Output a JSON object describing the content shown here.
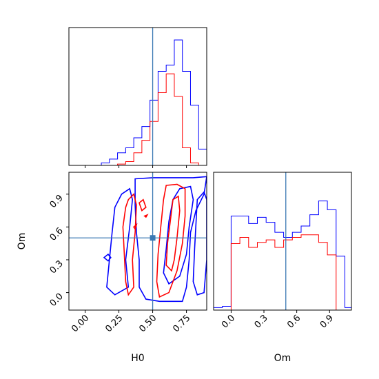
{
  "chart_data": [
    {
      "panel": "H0-marginal",
      "type": "histogram",
      "xlim": [
        -0.12,
        0.9
      ],
      "truth_x": 0.5,
      "bin_edges": [
        0.12,
        0.18,
        0.24,
        0.3,
        0.36,
        0.42,
        0.48,
        0.54,
        0.6,
        0.66,
        0.72,
        0.78,
        0.84,
        0.9
      ],
      "series": [
        {
          "color": "#0000ff",
          "counts": [
            0.02,
            0.05,
            0.1,
            0.14,
            0.22,
            0.31,
            0.52,
            0.75,
            0.8,
            1.0,
            0.75,
            0.48,
            0.13
          ]
        },
        {
          "color": "#ff0000",
          "counts": [
            0.0,
            0.0,
            0.01,
            0.03,
            0.1,
            0.2,
            0.35,
            0.58,
            0.73,
            0.55,
            0.14,
            0.02,
            0.0
          ]
        }
      ]
    },
    {
      "panel": "H0-Om-2D",
      "type": "contour",
      "xlabel": "H0",
      "ylabel": "Om",
      "xlim": [
        -0.12,
        0.9
      ],
      "ylim": [
        -0.16,
        1.1
      ],
      "xticks": [
        0.0,
        0.25,
        0.5,
        0.75
      ],
      "xtick_labels": [
        "0.00",
        "0.25",
        "0.50",
        "0.75"
      ],
      "yticks": [
        0.0,
        0.3,
        0.6,
        0.9
      ],
      "ytick_labels": [
        "0.0",
        "0.3",
        "0.6",
        "0.9"
      ],
      "truth": [
        0.5,
        0.5
      ],
      "contours": [
        {
          "color": "#0000ff",
          "points": [
            [
              0.37,
              1.04
            ],
            [
              0.5,
              1.05
            ],
            [
              0.65,
              1.05
            ],
            [
              0.8,
              1.05
            ],
            [
              0.9,
              1.06
            ],
            [
              0.88,
              0.9
            ],
            [
              0.82,
              0.75
            ],
            [
              0.78,
              0.55
            ],
            [
              0.77,
              0.3
            ],
            [
              0.75,
              0.05
            ],
            [
              0.72,
              -0.08
            ],
            [
              0.55,
              -0.08
            ],
            [
              0.45,
              -0.06
            ],
            [
              0.4,
              0.05
            ],
            [
              0.4,
              0.3
            ],
            [
              0.38,
              0.55
            ],
            [
              0.37,
              0.8
            ],
            [
              0.37,
              1.04
            ]
          ]
        },
        {
          "color": "#0000ff",
          "points": [
            [
              0.27,
              0.9
            ],
            [
              0.33,
              0.95
            ],
            [
              0.35,
              0.85
            ],
            [
              0.33,
              0.6
            ],
            [
              0.3,
              0.3
            ],
            [
              0.32,
              0.05
            ],
            [
              0.22,
              -0.02
            ],
            [
              0.16,
              0.05
            ],
            [
              0.18,
              0.3
            ],
            [
              0.2,
              0.55
            ],
            [
              0.22,
              0.78
            ],
            [
              0.27,
              0.9
            ]
          ]
        },
        {
          "color": "#0000ff",
          "points": [
            [
              0.7,
              0.95
            ],
            [
              0.78,
              0.97
            ],
            [
              0.8,
              0.85
            ],
            [
              0.77,
              0.6
            ],
            [
              0.75,
              0.35
            ],
            [
              0.7,
              0.15
            ],
            [
              0.62,
              0.08
            ],
            [
              0.58,
              0.18
            ],
            [
              0.6,
              0.4
            ],
            [
              0.62,
              0.65
            ],
            [
              0.65,
              0.85
            ],
            [
              0.7,
              0.95
            ]
          ]
        },
        {
          "color": "#0000ff",
          "points": [
            [
              0.83,
              0.85
            ],
            [
              0.88,
              0.92
            ],
            [
              0.9,
              0.85
            ],
            [
              0.9,
              0.3
            ],
            [
              0.88,
              0.0
            ],
            [
              0.83,
              -0.02
            ],
            [
              0.8,
              0.1
            ],
            [
              0.81,
              0.4
            ],
            [
              0.83,
              0.85
            ]
          ]
        },
        {
          "color": "#0000ff",
          "points": [
            [
              0.14,
              0.32
            ],
            [
              0.17,
              0.35
            ],
            [
              0.19,
              0.32
            ],
            [
              0.17,
              0.29
            ],
            [
              0.14,
              0.32
            ]
          ]
        },
        {
          "color": "#ff0000",
          "points": [
            [
              0.32,
              0.85
            ],
            [
              0.36,
              0.9
            ],
            [
              0.38,
              0.8
            ],
            [
              0.37,
              0.55
            ],
            [
              0.35,
              0.3
            ],
            [
              0.36,
              0.05
            ],
            [
              0.32,
              -0.02
            ],
            [
              0.3,
              0.1
            ],
            [
              0.29,
              0.35
            ],
            [
              0.28,
              0.6
            ],
            [
              0.3,
              0.78
            ],
            [
              0.32,
              0.85
            ]
          ]
        },
        {
          "color": "#ff0000",
          "points": [
            [
              0.6,
              0.98
            ],
            [
              0.68,
              0.99
            ],
            [
              0.74,
              0.95
            ],
            [
              0.74,
              0.7
            ],
            [
              0.72,
              0.45
            ],
            [
              0.68,
              0.2
            ],
            [
              0.62,
              0.0
            ],
            [
              0.55,
              -0.04
            ],
            [
              0.53,
              0.1
            ],
            [
              0.54,
              0.35
            ],
            [
              0.56,
              0.6
            ],
            [
              0.58,
              0.85
            ],
            [
              0.6,
              0.98
            ]
          ]
        },
        {
          "color": "#ff0000",
          "points": [
            [
              0.65,
              0.85
            ],
            [
              0.69,
              0.88
            ],
            [
              0.7,
              0.75
            ],
            [
              0.68,
              0.5
            ],
            [
              0.66,
              0.3
            ],
            [
              0.64,
              0.2
            ],
            [
              0.6,
              0.25
            ],
            [
              0.61,
              0.45
            ],
            [
              0.63,
              0.65
            ],
            [
              0.65,
              0.85
            ]
          ]
        },
        {
          "color": "#ff0000",
          "points": [
            [
              0.4,
              0.82
            ],
            [
              0.43,
              0.85
            ],
            [
              0.45,
              0.78
            ],
            [
              0.42,
              0.75
            ],
            [
              0.4,
              0.82
            ]
          ]
        },
        {
          "color": "#ff0000",
          "points": [
            [
              0.44,
              0.7
            ],
            [
              0.46,
              0.71
            ],
            [
              0.45,
              0.69
            ],
            [
              0.44,
              0.7
            ]
          ]
        },
        {
          "color": "#ff0000",
          "points": [
            [
              0.36,
              0.6
            ],
            [
              0.38,
              0.62
            ],
            [
              0.37,
              0.58
            ],
            [
              0.36,
              0.6
            ]
          ]
        }
      ]
    },
    {
      "panel": "Om-marginal",
      "type": "histogram",
      "xlabel": "Om",
      "xlim": [
        -0.16,
        1.1
      ],
      "xticks": [
        0.0,
        0.3,
        0.6,
        0.9
      ],
      "xtick_labels": [
        "0.0",
        "0.3",
        "0.6",
        "0.9"
      ],
      "truth_x": 0.5,
      "bin_edges": [
        -0.16,
        -0.08,
        0.0,
        0.08,
        0.16,
        0.24,
        0.32,
        0.4,
        0.48,
        0.56,
        0.64,
        0.72,
        0.8,
        0.88,
        0.96,
        1.04,
        1.1
      ],
      "series": [
        {
          "color": "#0000ff",
          "counts": [
            0.02,
            0.03,
            0.75,
            0.75,
            0.69,
            0.74,
            0.7,
            0.62,
            0.58,
            0.62,
            0.67,
            0.76,
            0.87,
            0.8,
            0.43,
            0.02
          ]
        },
        {
          "color": "#ff0000",
          "counts": [
            0.0,
            0.0,
            0.53,
            0.58,
            0.5,
            0.54,
            0.56,
            0.5,
            0.56,
            0.58,
            0.6,
            0.6,
            0.54,
            0.44,
            0.0,
            0.0
          ]
        }
      ]
    }
  ]
}
